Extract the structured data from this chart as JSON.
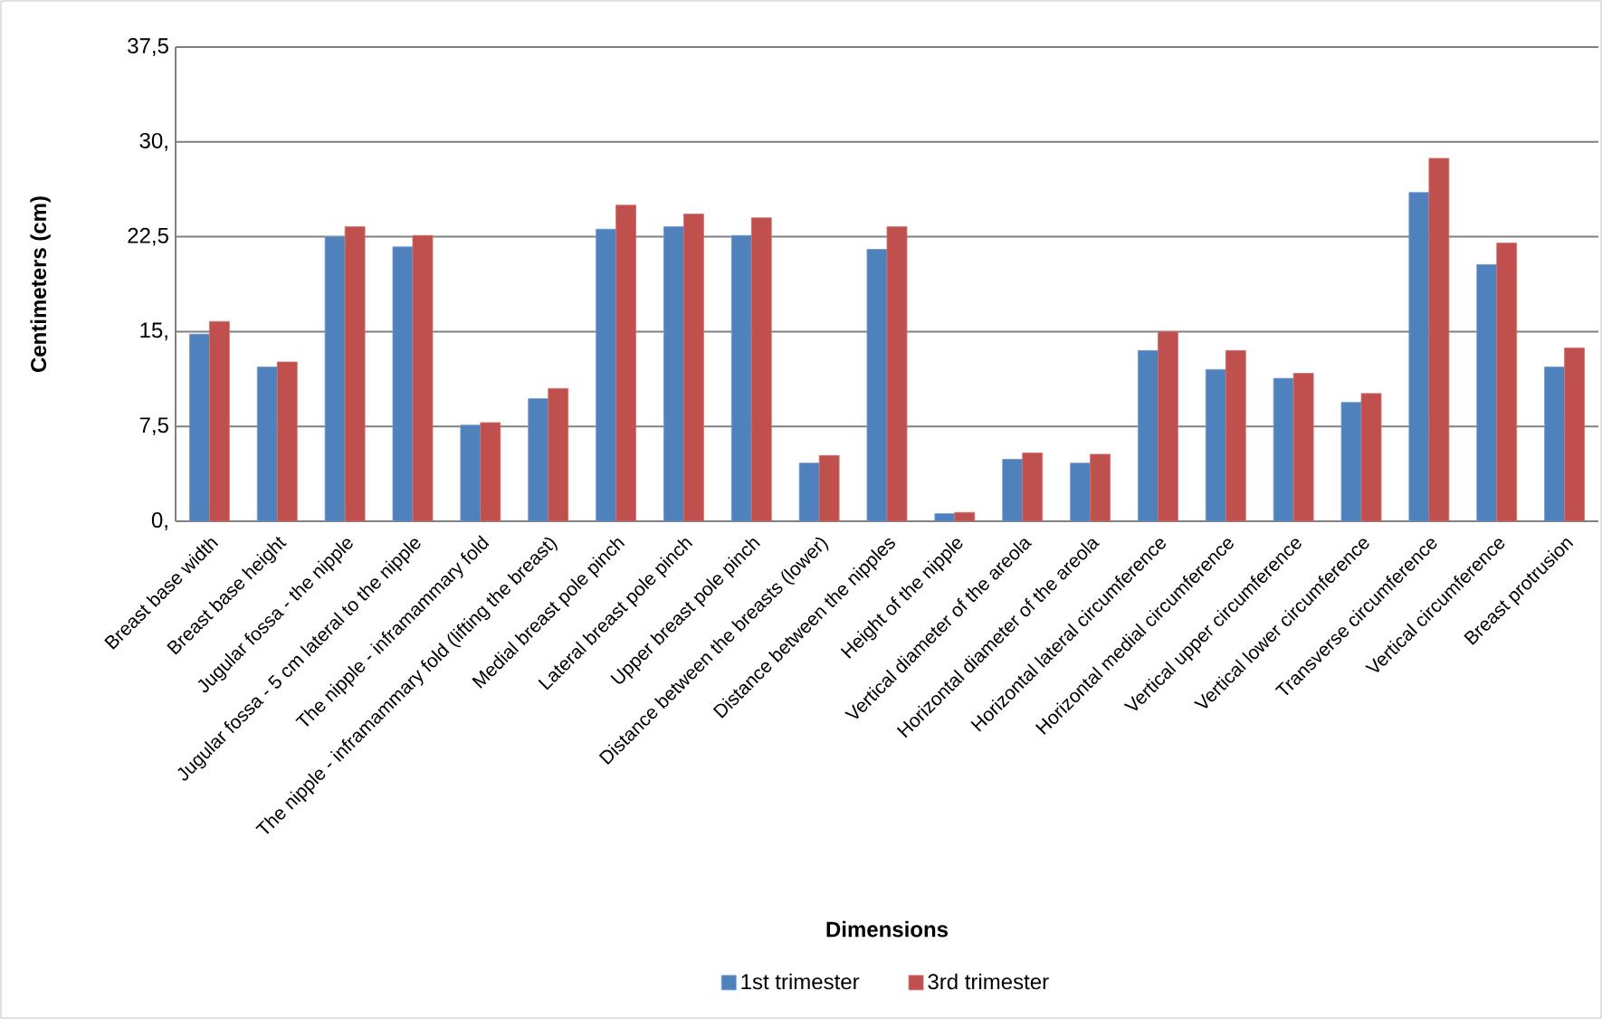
{
  "chart_data": {
    "type": "bar",
    "xlabel": "Dimensions",
    "ylabel": "Centimeters (cm)",
    "categories": [
      "Breast base width",
      "Breast base height",
      "Jugular fossa - the nipple",
      "Jugular fossa - 5 cm lateral to the nipple",
      "The nipple - inframammary fold",
      "The nipple - inframammary fold (lifting the breast)",
      "Medial breast pole pinch",
      "Lateral breast pole pinch",
      "Upper breast pole pinch",
      "Distance between the breasts (lower)",
      "Distance between the nipples",
      "Height of the nipple",
      "Vertical diameter of the areola",
      "Horizontal diameter of the areola",
      "Horizontal lateral circumference",
      "Horizontal medial circumference",
      "Vertical upper circumference",
      "Vertical lower circumference",
      "Transverse circumference",
      "Vertical circumference",
      "Breast protrusion"
    ],
    "series": [
      {
        "name": "1st trimester",
        "color": "#4f81bd",
        "values": [
          14.8,
          12.2,
          22.5,
          21.7,
          7.6,
          9.7,
          23.1,
          23.3,
          22.6,
          4.6,
          21.5,
          0.6,
          4.9,
          4.6,
          13.5,
          12.0,
          11.3,
          9.4,
          26.0,
          20.3,
          12.2
        ]
      },
      {
        "name": "3rd trimester",
        "color": "#c0504d",
        "values": [
          15.8,
          12.6,
          23.3,
          22.6,
          7.8,
          10.5,
          25.0,
          24.3,
          24.0,
          5.2,
          23.3,
          0.7,
          5.4,
          5.3,
          15.0,
          13.5,
          11.7,
          10.1,
          28.7,
          22.0,
          13.7
        ]
      }
    ],
    "ylim": [
      0,
      37.5
    ],
    "yticks": [
      {
        "value": 0,
        "label": "0,"
      },
      {
        "value": 7.5,
        "label": "7,5"
      },
      {
        "value": 15,
        "label": "15,"
      },
      {
        "value": 22.5,
        "label": "22,5"
      },
      {
        "value": 30,
        "label": "30,"
      },
      {
        "value": 37.5,
        "label": "37,5"
      }
    ],
    "grid": "y",
    "legend": "bottom"
  }
}
